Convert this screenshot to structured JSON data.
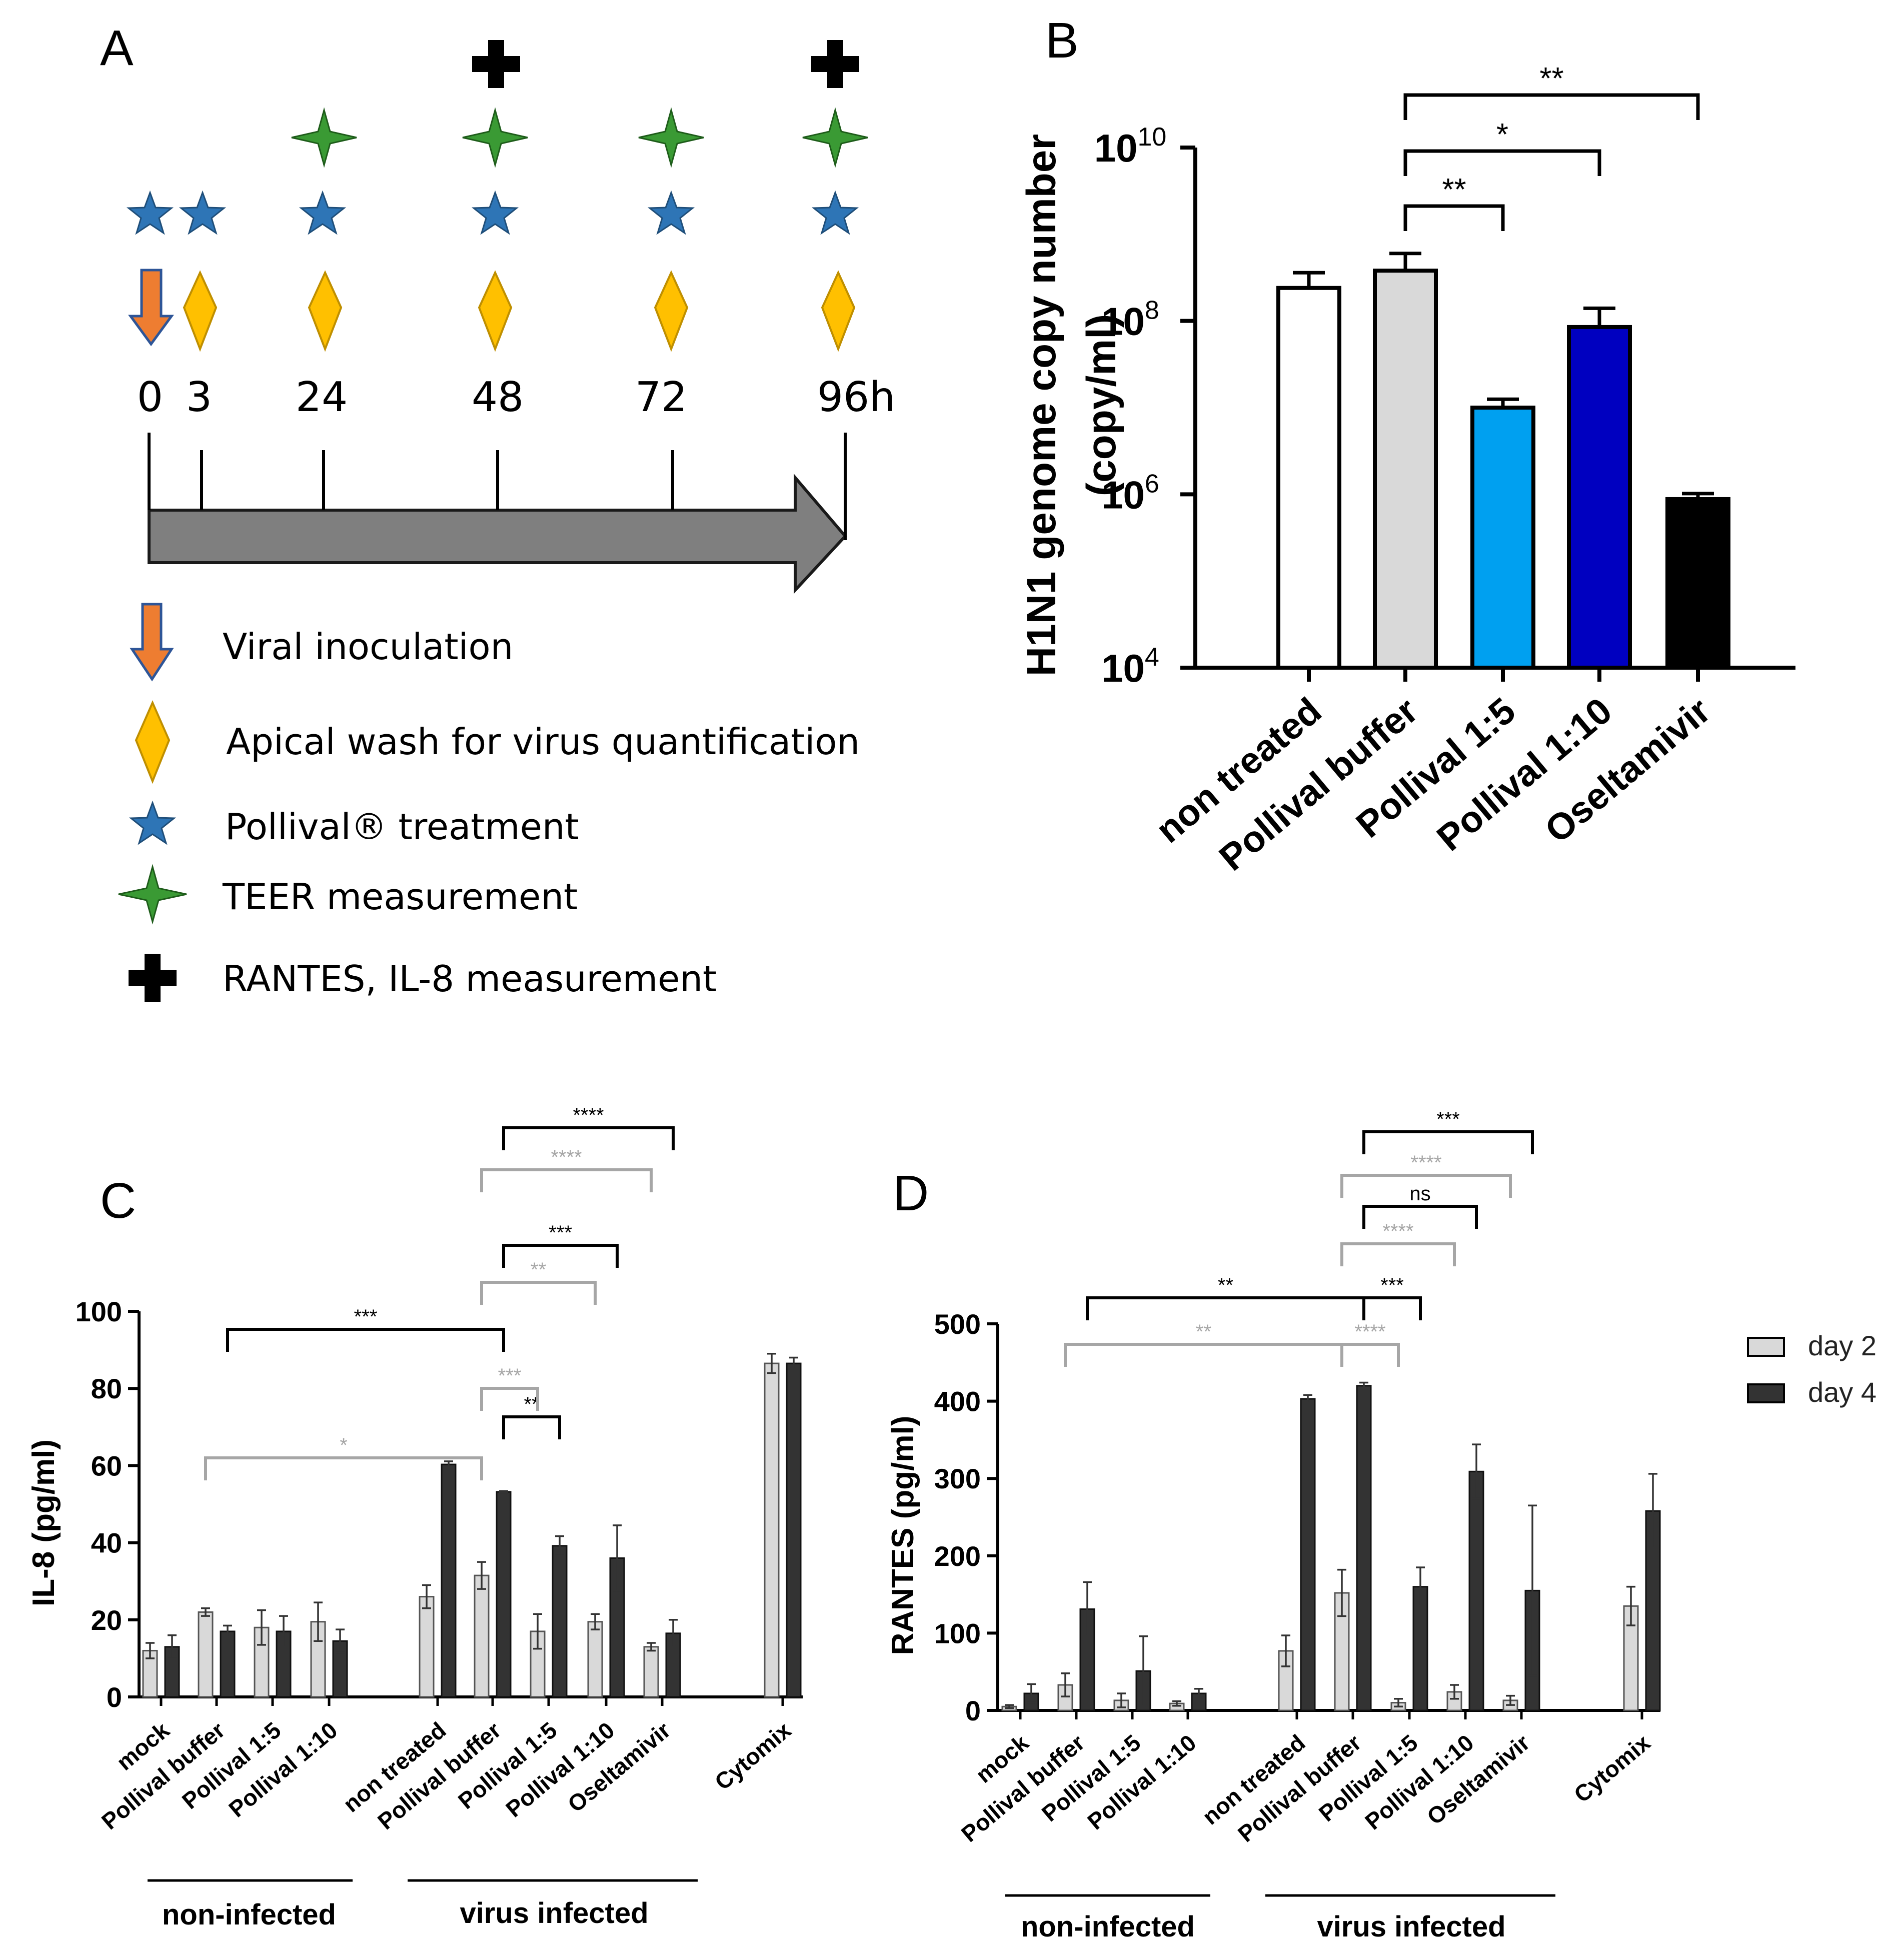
{
  "panels": {
    "A": "A",
    "B": "B",
    "C": "C",
    "D": "D"
  },
  "timeline": {
    "time_labels": [
      "0",
      "3",
      "24",
      "48",
      "72",
      "96h"
    ],
    "legend": [
      "Viral inoculation",
      "Apical wash for virus quantification",
      "Pollival® treatment",
      "TEER measurement",
      "RANTES, IL-8 measurement"
    ],
    "icon_names": [
      "arrow-down-icon",
      "diamond-icon",
      "star-icon",
      "four-point-star-icon",
      "plus-icon"
    ]
  },
  "colors": {
    "orange": "#ee7d31",
    "diamond": "#ffc000",
    "blue_star": "#2e75b6",
    "green_star": "#3a9a34",
    "light_gray": "#d9d9d9",
    "dark_bar": "#333333",
    "sky": "#00a0f0",
    "navy": "#0000c0",
    "sig_gray": "#a6a6a6"
  },
  "chart_data": [
    {
      "id": "B",
      "type": "bar",
      "scale": "log10",
      "ylabel_line1": "H1N1 genome copy number",
      "ylabel_line2": "(copy/ml)",
      "ytick_base": "10",
      "ytick_exponents": [
        "4",
        "6",
        "8",
        "10"
      ],
      "ylim_log10": [
        4,
        10
      ],
      "categories": [
        "non treated",
        "Pollival buffer",
        "Pollival 1:5",
        "Pollival 1:10",
        "Oseltamivir"
      ],
      "values": [
        240000000,
        380000000,
        10000000,
        85000000,
        880000
      ],
      "errors_upper": [
        360000000,
        600000000,
        12500000,
        140000000,
        1020000
      ],
      "bar_colors": [
        "#ffffff",
        "#d9d9d9",
        "#00a0f0",
        "#0000c0",
        "#000000"
      ],
      "significance": [
        {
          "from": "Pollival buffer",
          "to": "Pollival 1:5",
          "label": "**"
        },
        {
          "from": "Pollival buffer",
          "to": "Pollival 1:10",
          "label": "*"
        },
        {
          "from": "Pollival buffer",
          "to": "Oseltamivir",
          "label": "**"
        }
      ]
    },
    {
      "id": "C",
      "type": "bar",
      "ylabel": "IL-8 (pg/ml)",
      "ylim": [
        0,
        100
      ],
      "yticks": [
        "0",
        "20",
        "40",
        "60",
        "80",
        "100"
      ],
      "categories": [
        "mock",
        "Pollival buffer",
        "Pollival 1:5",
        "Pollival 1:10",
        "non treated",
        "Pollival buffer",
        "Pollival 1:5",
        "Pollival 1:10",
        "Oseltamivir",
        "Cytomix"
      ],
      "series": [
        {
          "name": "day 2",
          "values": [
            12,
            22,
            18,
            19.5,
            26,
            31.5,
            17,
            19.5,
            13,
            86.5
          ],
          "errors": [
            2,
            1,
            4.5,
            5,
            3,
            3.5,
            4.5,
            2,
            1,
            2.5
          ]
        },
        {
          "name": "day 4",
          "values": [
            13,
            17,
            17,
            14.5,
            60.3,
            53.2,
            39.2,
            36,
            16.5,
            86.5
          ],
          "errors": [
            3,
            1.5,
            4,
            3,
            0.8,
            0.2,
            2.5,
            8.5,
            3.5,
            1.5
          ]
        }
      ],
      "groups": [
        "non-infected",
        "virus infected"
      ],
      "significance": [
        {
          "from": 5,
          "to": 6,
          "series": "day 4",
          "label": "**"
        },
        {
          "from": 5,
          "to": 6,
          "series": "day 2",
          "label": "***"
        },
        {
          "from": 1,
          "to": 5,
          "series": "day 4",
          "label": "***"
        },
        {
          "from": 1,
          "to": 5,
          "series": "day 2",
          "label": "*"
        },
        {
          "from": 5,
          "to": 7,
          "series": "day 2",
          "label": "**"
        },
        {
          "from": 5,
          "to": 7,
          "series": "day 4",
          "label": "***"
        },
        {
          "from": 5,
          "to": 8,
          "series": "day 2",
          "label": "****"
        },
        {
          "from": 5,
          "to": 8,
          "series": "day 4",
          "label": "****"
        }
      ]
    },
    {
      "id": "D",
      "type": "bar",
      "ylabel": "RANTES (pg/ml)",
      "ylim": [
        0,
        500
      ],
      "yticks": [
        "0",
        "100",
        "200",
        "300",
        "400",
        "500"
      ],
      "categories": [
        "mock",
        "Pollival buffer",
        "Pollival 1:5",
        "Pollival 1:10",
        "non treated",
        "Pollival buffer",
        "Pollival 1:5",
        "Pollival 1:10",
        "Oseltamivir",
        "Cytomix"
      ],
      "series": [
        {
          "name": "day 2",
          "values": [
            5,
            33,
            13,
            9,
            77,
            152,
            10,
            24,
            13,
            135
          ],
          "errors": [
            2,
            15,
            9,
            3,
            20,
            30,
            5,
            9,
            6,
            25
          ]
        },
        {
          "name": "day 4",
          "values": [
            22,
            131,
            51,
            22,
            403,
            420,
            160,
            309,
            155,
            258
          ],
          "errors": [
            12,
            35,
            45,
            6,
            5,
            4,
            25,
            35,
            110,
            48
          ]
        }
      ],
      "legend_labels": [
        "day 2",
        "day 4"
      ],
      "groups": [
        "non-infected",
        "virus infected"
      ],
      "significance": [
        {
          "from": 1,
          "to": 5,
          "series": "day 4",
          "label": "**"
        },
        {
          "from": 1,
          "to": 5,
          "series": "day 2",
          "label": "**"
        },
        {
          "from": 5,
          "to": 6,
          "series": "day 4",
          "label": "***"
        },
        {
          "from": 5,
          "to": 6,
          "series": "day 2",
          "label": "****"
        },
        {
          "from": 5,
          "to": 7,
          "series": "day 2",
          "label": "****"
        },
        {
          "from": 5,
          "to": 7,
          "series": "day 4",
          "label": "ns"
        },
        {
          "from": 5,
          "to": 8,
          "series": "day 2",
          "label": "****"
        },
        {
          "from": 5,
          "to": 8,
          "series": "day 4",
          "label": "***"
        }
      ]
    }
  ]
}
